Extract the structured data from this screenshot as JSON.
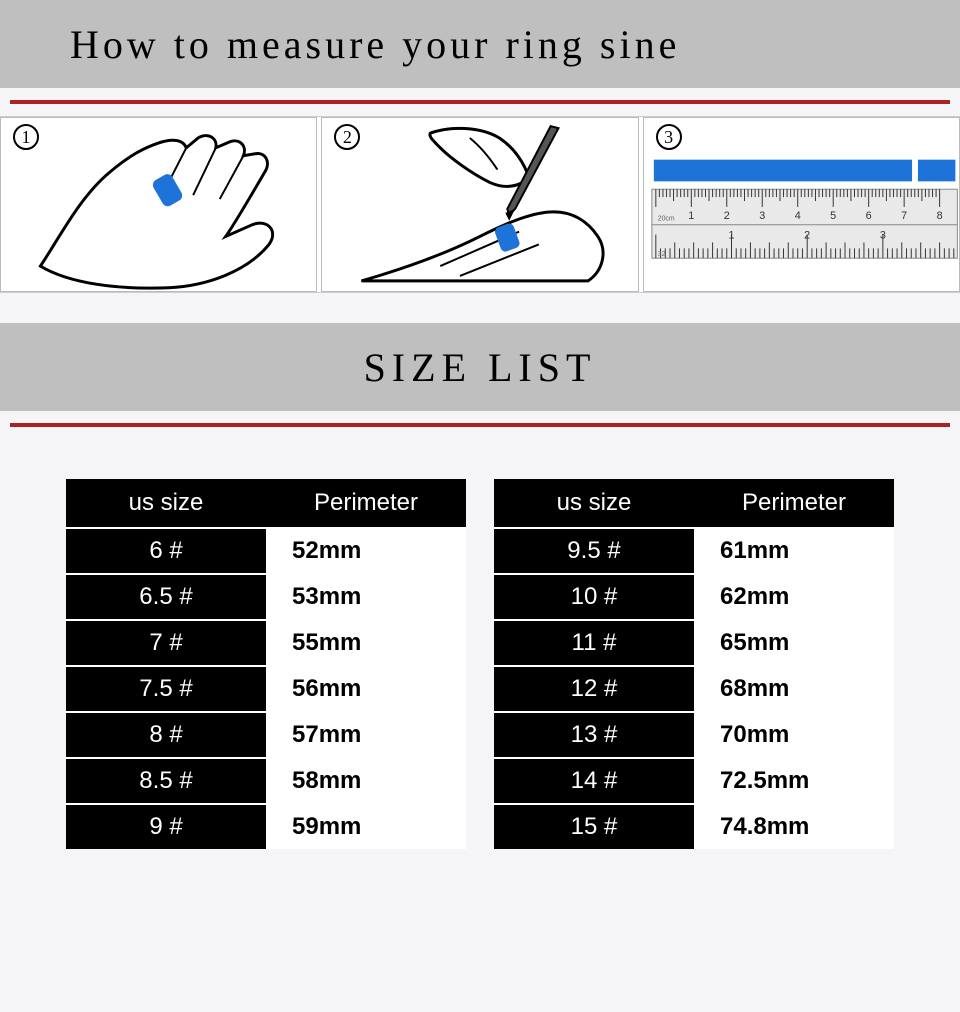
{
  "header": {
    "title": "How to measure your ring sine"
  },
  "steps": {
    "nums": [
      "1",
      "2",
      "3"
    ],
    "ruler_top_ticks": [
      "1",
      "2",
      "3",
      "4",
      "5",
      "6",
      "7",
      "8"
    ],
    "ruler_bottom_ticks": [
      "1",
      "2",
      "3"
    ],
    "strip_color": "#1e73d8"
  },
  "section": {
    "title": "SIZE LIST"
  },
  "table_headers": {
    "us": "us size",
    "per": "Perimeter"
  },
  "table_left": [
    {
      "us": "6 #",
      "per": "52mm"
    },
    {
      "us": "6.5 #",
      "per": "53mm"
    },
    {
      "us": "7 #",
      "per": "55mm"
    },
    {
      "us": "7.5 #",
      "per": "56mm"
    },
    {
      "us": "8 #",
      "per": "57mm"
    },
    {
      "us": "8.5 #",
      "per": "58mm"
    },
    {
      "us": "9 #",
      "per": "59mm"
    }
  ],
  "table_right": [
    {
      "us": "9.5 #",
      "per": "61mm"
    },
    {
      "us": "10 #",
      "per": "62mm"
    },
    {
      "us": "11 #",
      "per": "65mm"
    },
    {
      "us": "12 #",
      "per": "68mm"
    },
    {
      "us": "13 #",
      "per": "70mm"
    },
    {
      "us": "14 #",
      "per": "72.5mm"
    },
    {
      "us": "15 #",
      "per": "74.8mm"
    }
  ],
  "colors": {
    "band": "#bfbfbf",
    "rule": "#a22",
    "black": "#000000",
    "white": "#ffffff",
    "bg": "#f5f5f7"
  }
}
